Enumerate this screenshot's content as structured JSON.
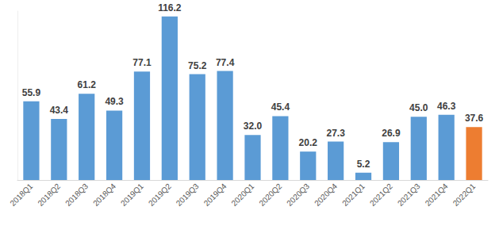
{
  "chart_data": {
    "type": "bar",
    "categories": [
      "2018Q1",
      "2018Q2",
      "2018Q3",
      "2018Q4",
      "2019Q1",
      "2019Q2",
      "2019Q3",
      "2019Q4",
      "2020Q1",
      "2020Q2",
      "2020Q3",
      "2020Q4",
      "2021Q1",
      "2021Q2",
      "2021Q3",
      "2021Q4",
      "2022Q1"
    ],
    "values": [
      55.9,
      43.4,
      61.2,
      49.3,
      77.1,
      116.2,
      75.2,
      77.4,
      32.0,
      45.4,
      20.2,
      27.3,
      5.2,
      26.9,
      45.0,
      46.3,
      37.6
    ],
    "value_labels": [
      "55.9",
      "43.4",
      "61.2",
      "49.3",
      "77.1",
      "116.2",
      "75.2",
      "77.4",
      "32.0",
      "45.4",
      "20.2",
      "27.3",
      "5.2",
      "26.9",
      "45.0",
      "46.3",
      "37.6"
    ],
    "colors": [
      "#5b9bd5",
      "#5b9bd5",
      "#5b9bd5",
      "#5b9bd5",
      "#5b9bd5",
      "#5b9bd5",
      "#5b9bd5",
      "#5b9bd5",
      "#5b9bd5",
      "#5b9bd5",
      "#5b9bd5",
      "#5b9bd5",
      "#5b9bd5",
      "#5b9bd5",
      "#5b9bd5",
      "#5b9bd5",
      "#ed7d31"
    ],
    "ylim": [
      0,
      120
    ],
    "grid": false,
    "data_labels": true,
    "tick_labels": "x"
  }
}
